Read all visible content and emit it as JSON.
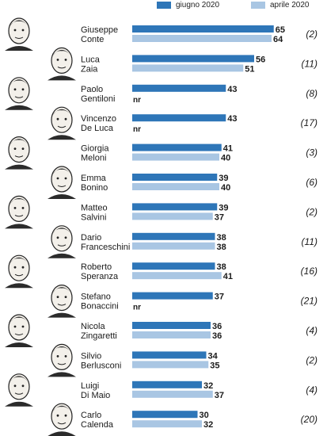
{
  "colors": {
    "giugno": "#2e76b8",
    "aprile": "#a9c6e3",
    "text": "#1a1a1a"
  },
  "chart_data": {
    "type": "bar",
    "orientation": "horizontal",
    "series": [
      {
        "name": "giugno 2020",
        "values": [
          65,
          56,
          43,
          43,
          41,
          39,
          39,
          38,
          38,
          37,
          36,
          34,
          32,
          30
        ]
      },
      {
        "name": "aprile 2020",
        "values": [
          64,
          51,
          null,
          null,
          40,
          40,
          37,
          38,
          41,
          null,
          36,
          35,
          37,
          32
        ]
      }
    ],
    "categories": [
      {
        "first": "Giuseppe",
        "last": "Conte",
        "note": "(2)",
        "portrait": "portrait-conte"
      },
      {
        "first": "Luca",
        "last": "Zaia",
        "note": "(11)",
        "portrait": "portrait-zaia"
      },
      {
        "first": "Paolo",
        "last": "Gentiloni",
        "note": "(8)",
        "portrait": "portrait-gentiloni"
      },
      {
        "first": "Vincenzo",
        "last": "De Luca",
        "note": "(17)",
        "portrait": "portrait-de-luca"
      },
      {
        "first": "Giorgia",
        "last": "Meloni",
        "note": "(3)",
        "portrait": "portrait-meloni"
      },
      {
        "first": "Emma",
        "last": "Bonino",
        "note": "(6)",
        "portrait": "portrait-bonino"
      },
      {
        "first": "Matteo",
        "last": "Salvini",
        "note": "(2)",
        "portrait": "portrait-salvini"
      },
      {
        "first": "Dario",
        "last": "Franceschini",
        "note": "(11)",
        "portrait": "portrait-franceschini"
      },
      {
        "first": "Roberto",
        "last": "Speranza",
        "note": "(16)",
        "portrait": "portrait-speranza"
      },
      {
        "first": "Stefano",
        "last": "Bonaccini",
        "note": "(21)",
        "portrait": "portrait-bonaccini"
      },
      {
        "first": "Nicola",
        "last": "Zingaretti",
        "note": "(4)",
        "portrait": "portrait-zingaretti"
      },
      {
        "first": "Silvio",
        "last": "Berlusconi",
        "note": "(2)",
        "portrait": "portrait-berlusconi"
      },
      {
        "first": "Luigi",
        "last": "Di Maio",
        "note": "(4)",
        "portrait": "portrait-di-maio"
      },
      {
        "first": "Carlo",
        "last": "Calenda",
        "note": "(20)",
        "portrait": "portrait-calenda"
      }
    ],
    "missing_label": "nr",
    "legend_position": "top-right"
  }
}
